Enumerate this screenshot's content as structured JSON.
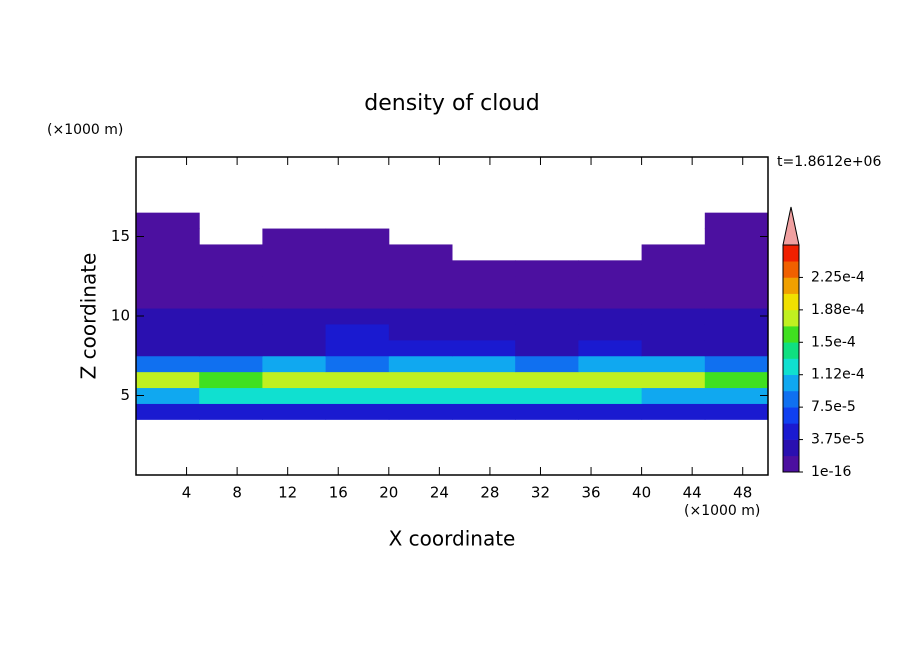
{
  "chart_data": {
    "type": "contour",
    "title": "density of cloud",
    "xlabel": "X coordinate",
    "ylabel": "Z coordinate",
    "xunit": "(×1000 m)",
    "yunit": "(×1000 m)",
    "time_label": "t=1.8612e+06",
    "xlim": [
      0,
      50
    ],
    "ylim": [
      0,
      20
    ],
    "xticks": [
      4,
      8,
      12,
      16,
      20,
      24,
      28,
      32,
      36,
      40,
      44,
      48
    ],
    "yticks": [
      5,
      10,
      15
    ],
    "x": [
      2.5,
      7.5,
      12.5,
      17.5,
      22.5,
      27.5,
      32.5,
      37.5,
      42.5,
      47.5
    ],
    "y": [
      4,
      5,
      6,
      7,
      8,
      9,
      10,
      11,
      12,
      13,
      14,
      15,
      16
    ],
    "values": [
      [
        4e-05,
        4.5e-05,
        5e-05,
        5e-05,
        4.5e-05,
        5e-05,
        5e-05,
        4.5e-05,
        5e-05,
        4e-05
      ],
      [
        0.00011,
        0.000115,
        0.00012,
        0.000115,
        0.00012,
        0.000115,
        0.00012,
        0.000115,
        0.00011,
        0.000105
      ],
      [
        0.00017,
        0.00016,
        0.000185,
        0.000175,
        0.00018,
        0.00017,
        0.000175,
        0.000185,
        0.00018,
        0.00016
      ],
      [
        9e-05,
        8e-05,
        0.0001,
        9e-05,
        0.00011,
        0.0001,
        9e-05,
        0.000105,
        0.0001,
        8e-05
      ],
      [
        3e-05,
        2.5e-05,
        3e-05,
        5e-05,
        5.5e-05,
        4e-05,
        3.5e-05,
        4e-05,
        3.5e-05,
        3e-05
      ],
      [
        2e-05,
        2e-05,
        2.5e-05,
        4e-05,
        3e-05,
        2.5e-05,
        2e-05,
        2.5e-05,
        2e-05,
        2e-05
      ],
      [
        2e-05,
        1.9e-05,
        2e-05,
        2.2e-05,
        2e-05,
        1.9e-05,
        2e-05,
        2e-05,
        2e-05,
        2e-05
      ],
      [
        1e-05,
        1e-05,
        1e-05,
        1e-05,
        1e-05,
        1e-05,
        1e-05,
        1e-05,
        1e-05,
        1e-05
      ],
      [
        5e-06,
        5e-06,
        5e-06,
        5e-06,
        5e-06,
        5e-06,
        5e-06,
        5e-06,
        5e-06,
        5e-06
      ],
      [
        2e-06,
        2e-06,
        2e-06,
        2e-06,
        2e-06,
        2e-06,
        2e-06,
        2e-06,
        2e-06,
        2e-06
      ],
      [
        1e-06,
        1e-06,
        1e-06,
        1e-06,
        1e-06,
        null,
        null,
        null,
        1e-06,
        1e-06
      ],
      [
        1e-06,
        null,
        1e-06,
        1e-06,
        null,
        null,
        null,
        null,
        null,
        1e-06
      ],
      [
        1e-16,
        null,
        null,
        null,
        null,
        null,
        null,
        null,
        null,
        1e-16
      ]
    ],
    "levels": [
      1e-16,
      1.875e-05,
      3.75e-05,
      5.625e-05,
      7.5e-05,
      9.375e-05,
      0.0001125,
      0.00013125,
      0.00015,
      0.00016875,
      0.0001875,
      0.00020625,
      0.000225,
      0.00024375
    ],
    "colors": [
      "#4c10a0",
      "#2a10b0",
      "#1a1ad0",
      "#1040f0",
      "#1070f0",
      "#10a8f0",
      "#10e0d0",
      "#10e080",
      "#40e020",
      "#c0f020",
      "#f0e000",
      "#f0a000",
      "#f06000",
      "#f02000"
    ],
    "extend_color": "#f0a0a0",
    "cticks": [
      {
        "value": 1e-16,
        "label": "1e-16"
      },
      {
        "value": 3.75e-05,
        "label": "3.75e-5"
      },
      {
        "value": 7.5e-05,
        "label": "7.5e-5"
      },
      {
        "value": 0.0001125,
        "label": "1.12e-4"
      },
      {
        "value": 0.00015,
        "label": "1.5e-4"
      },
      {
        "value": 0.0001875,
        "label": "1.88e-4"
      },
      {
        "value": 0.000225,
        "label": "2.25e-4"
      }
    ]
  }
}
